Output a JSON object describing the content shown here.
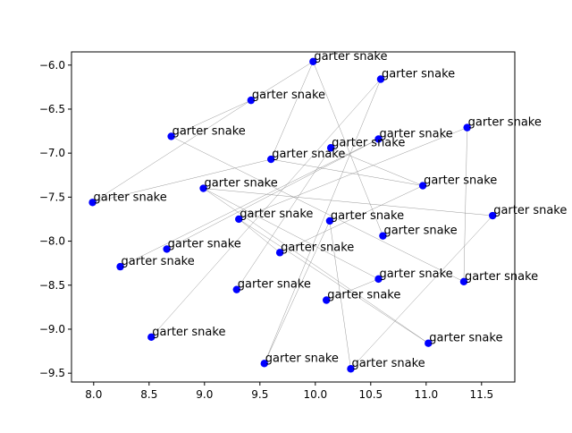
{
  "chart_data": {
    "type": "scatter",
    "title": "",
    "xlabel": "",
    "ylabel": "",
    "xlim": [
      7.8,
      11.8
    ],
    "ylim": [
      -9.6,
      -5.85
    ],
    "grid": false,
    "legend": "none",
    "colors": {
      "points": "#0000ff",
      "edges": "#808080",
      "axes": "#000000"
    },
    "xticks": [
      8.0,
      8.5,
      9.0,
      9.5,
      10.0,
      10.5,
      11.0,
      11.5
    ],
    "xtick_labels": [
      "8.0",
      "8.5",
      "9.0",
      "9.5",
      "10.0",
      "10.5",
      "11.0",
      "11.5"
    ],
    "yticks": [
      -6.0,
      -6.5,
      -7.0,
      -7.5,
      -8.0,
      -8.5,
      -9.0,
      -9.5
    ],
    "ytick_labels": [
      "−6.0",
      "−6.5",
      "−7.0",
      "−7.5",
      "−8.0",
      "−8.5",
      "−9.0",
      "−9.5"
    ],
    "points": [
      {
        "x": 9.98,
        "y": -5.96,
        "label": "garter snake"
      },
      {
        "x": 10.59,
        "y": -6.16,
        "label": "garter snake"
      },
      {
        "x": 9.42,
        "y": -6.4,
        "label": "garter snake"
      },
      {
        "x": 11.37,
        "y": -6.71,
        "label": "garter snake"
      },
      {
        "x": 8.7,
        "y": -6.81,
        "label": "garter snake"
      },
      {
        "x": 10.57,
        "y": -6.84,
        "label": "garter snake"
      },
      {
        "x": 10.14,
        "y": -6.94,
        "label": "garter snake"
      },
      {
        "x": 9.6,
        "y": -7.07,
        "label": "garter snake"
      },
      {
        "x": 10.97,
        "y": -7.37,
        "label": "garter snake"
      },
      {
        "x": 8.99,
        "y": -7.4,
        "label": "garter snake"
      },
      {
        "x": 7.99,
        "y": -7.56,
        "label": "garter snake"
      },
      {
        "x": 11.6,
        "y": -7.71,
        "label": "garter snake"
      },
      {
        "x": 9.31,
        "y": -7.75,
        "label": "garter snake"
      },
      {
        "x": 10.13,
        "y": -7.77,
        "label": "garter snake"
      },
      {
        "x": 10.61,
        "y": -7.94,
        "label": "garter snake"
      },
      {
        "x": 8.66,
        "y": -8.09,
        "label": "garter snake"
      },
      {
        "x": 9.68,
        "y": -8.13,
        "label": "garter snake"
      },
      {
        "x": 8.24,
        "y": -8.29,
        "label": "garter snake"
      },
      {
        "x": 10.57,
        "y": -8.43,
        "label": "garter snake"
      },
      {
        "x": 11.34,
        "y": -8.46,
        "label": "garter snake"
      },
      {
        "x": 9.29,
        "y": -8.55,
        "label": "garter snake"
      },
      {
        "x": 10.1,
        "y": -8.67,
        "label": "garter snake"
      },
      {
        "x": 8.52,
        "y": -9.09,
        "label": "garter snake"
      },
      {
        "x": 11.02,
        "y": -9.16,
        "label": "garter snake"
      },
      {
        "x": 9.54,
        "y": -9.39,
        "label": "garter snake"
      },
      {
        "x": 10.32,
        "y": -9.45,
        "label": "garter snake"
      }
    ],
    "edges": [
      [
        0,
        2
      ],
      [
        0,
        7
      ],
      [
        0,
        14
      ],
      [
        1,
        24
      ],
      [
        1,
        22
      ],
      [
        2,
        4
      ],
      [
        2,
        10
      ],
      [
        3,
        19
      ],
      [
        3,
        12
      ],
      [
        4,
        19
      ],
      [
        5,
        17
      ],
      [
        5,
        15
      ],
      [
        6,
        20
      ],
      [
        6,
        8
      ],
      [
        7,
        10
      ],
      [
        7,
        8
      ],
      [
        8,
        16
      ],
      [
        9,
        11
      ],
      [
        9,
        23
      ],
      [
        11,
        25
      ],
      [
        12,
        16
      ],
      [
        12,
        23
      ],
      [
        13,
        24
      ],
      [
        18,
        21
      ],
      [
        9,
        18
      ],
      [
        13,
        25
      ]
    ]
  }
}
